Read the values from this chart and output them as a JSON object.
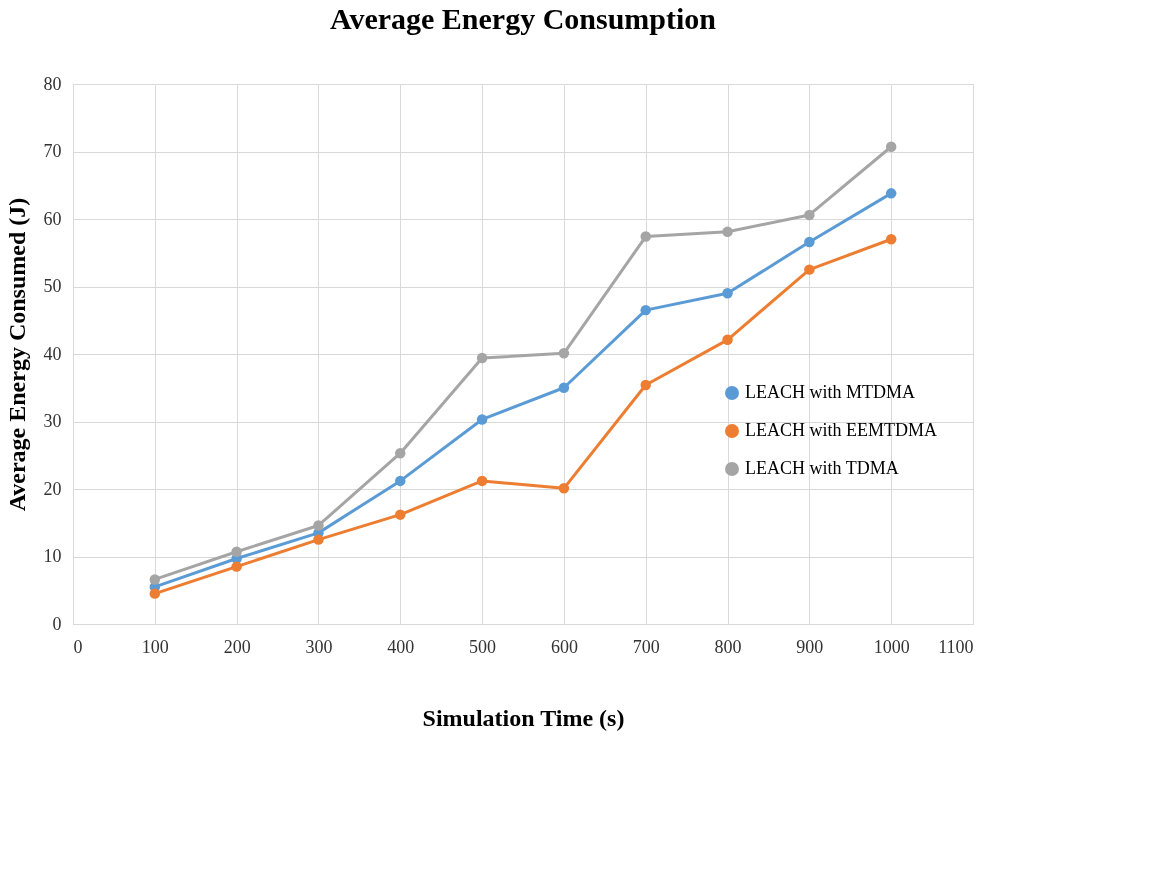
{
  "chart_data": {
    "type": "line",
    "title": "Average Energy Consumption",
    "xlabel": "Simulation Time (s)",
    "ylabel": "Average Energy Consumed (J)",
    "x": [
      100,
      200,
      300,
      400,
      500,
      600,
      700,
      800,
      900,
      1000
    ],
    "series": [
      {
        "name": "LEACH with MTDMA",
        "color": "#5b9bd5",
        "values": [
          5.5,
          9.7,
          13.5,
          21.2,
          30.3,
          35,
          46.5,
          49,
          56.6,
          63.8
        ]
      },
      {
        "name": "LEACH with EEMTDMA",
        "color": "#ed7d31",
        "values": [
          4.5,
          8.5,
          12.5,
          16.2,
          21.2,
          20.1,
          35.4,
          42.1,
          52.5,
          57
        ]
      },
      {
        "name": "LEACH  with TDMA",
        "color": "#a5a5a5",
        "values": [
          6.6,
          10.7,
          14.6,
          25.3,
          39.4,
          40.1,
          57.4,
          58.1,
          60.6,
          70.7
        ]
      }
    ],
    "xlim": [
      0,
      1100
    ],
    "xticks": [
      0,
      100,
      200,
      300,
      400,
      500,
      600,
      700,
      800,
      900,
      1000,
      1100
    ],
    "ylim": [
      0,
      80
    ],
    "yticks": [
      0,
      10,
      20,
      30,
      40,
      50,
      60,
      70,
      80
    ],
    "grid": true,
    "legend": "right",
    "marker": "circle",
    "line_style": "solid"
  }
}
